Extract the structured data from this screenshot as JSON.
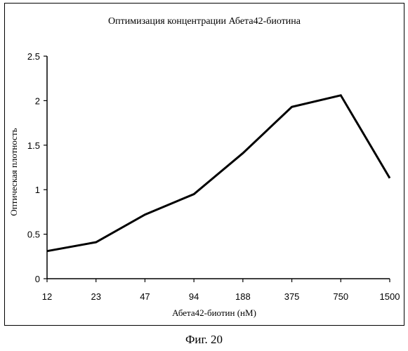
{
  "figure_caption": "Фиг. 20",
  "chart_data": {
    "type": "line",
    "title": "Оптимизация концентрации Абета42-биотина",
    "xlabel": "Абета42-биотин (нМ)",
    "ylabel": "Оптическая плотность",
    "categories": [
      "12",
      "23",
      "47",
      "94",
      "188",
      "375",
      "750",
      "1500"
    ],
    "series": [
      {
        "values": [
          0.31,
          0.41,
          0.72,
          0.95,
          1.41,
          1.93,
          2.06,
          1.13
        ]
      }
    ],
    "ylim": [
      0,
      2.5
    ],
    "yticks": [
      "0",
      "0.5",
      "1",
      "1.5",
      "2",
      "2.5"
    ],
    "grid": false,
    "line_color": "#000000"
  }
}
